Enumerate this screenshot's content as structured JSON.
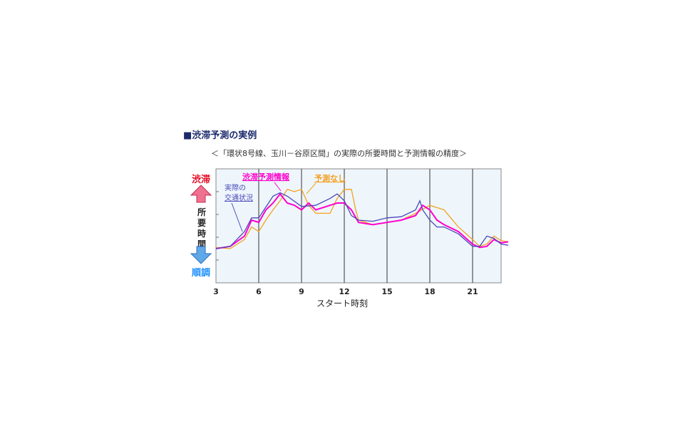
{
  "title": "■渋滞予測の実例",
  "chart_data": {
    "type": "line",
    "title": "＜「環状8号線、玉川－谷原区間」の実際の所要時間と予測情報の精度＞",
    "xlabel": "スタート時刻",
    "ylabel": "所要時間",
    "y_top_label": "渋滞",
    "y_bottom_label": "順調",
    "xlim": [
      3,
      23.5
    ],
    "ylim": [
      0,
      100
    ],
    "xticks": [
      3,
      6,
      9,
      12,
      15,
      18,
      21
    ],
    "grid": "vertical",
    "series": [
      {
        "name": "実際の交通状況",
        "color": "#4a4ab8",
        "x": [
          3,
          4,
          5,
          5.5,
          6,
          7,
          7.5,
          8,
          9,
          10,
          11,
          11.5,
          12,
          12.5,
          13,
          14,
          15,
          16,
          17,
          17.3,
          17.5,
          18,
          18.5,
          19,
          20,
          21,
          21.5,
          22,
          22.5,
          23,
          23.5
        ],
        "y": [
          30,
          32,
          45,
          57,
          57,
          76,
          79,
          76,
          67,
          68,
          74,
          78,
          72,
          59,
          55,
          54,
          57,
          58,
          64,
          72,
          64,
          55,
          49,
          49,
          43,
          32,
          32,
          41,
          39,
          34,
          33
        ]
      },
      {
        "name": "渋滞予測情報",
        "color": "#ff00cc",
        "x": [
          3,
          4,
          5,
          5.5,
          6,
          6.5,
          7,
          7.5,
          8,
          8.5,
          9,
          9.5,
          10,
          11,
          11.5,
          12,
          12.5,
          13,
          14,
          15,
          16,
          17,
          17.5,
          18,
          18.5,
          19,
          20,
          21,
          21.5,
          22,
          22.5,
          23,
          23.5
        ],
        "y": [
          30,
          32,
          41,
          55,
          53,
          64,
          70,
          78,
          70,
          68,
          64,
          70,
          64,
          68,
          70,
          70,
          64,
          53,
          51,
          53,
          55,
          59,
          68,
          64,
          55,
          51,
          45,
          34,
          31,
          32,
          38,
          35,
          36
        ]
      },
      {
        "name": "予測なし",
        "color": "#f5a020",
        "x": [
          3,
          4,
          5,
          5.5,
          6,
          6.5,
          7,
          7.5,
          8,
          8.5,
          9,
          9.5,
          10,
          11,
          11.5,
          12,
          12.5,
          12.8,
          13,
          14,
          15,
          16,
          17,
          18,
          18.5,
          19,
          20,
          21,
          21.5,
          22,
          22.5,
          23,
          23.5
        ],
        "y": [
          31,
          30,
          38,
          49,
          45,
          55,
          64,
          72,
          82,
          80,
          82,
          68,
          61,
          61,
          74,
          82,
          82,
          64,
          55,
          51,
          53,
          55,
          61,
          68,
          66,
          64,
          49,
          38,
          32,
          34,
          41,
          37,
          36
        ]
      }
    ]
  }
}
